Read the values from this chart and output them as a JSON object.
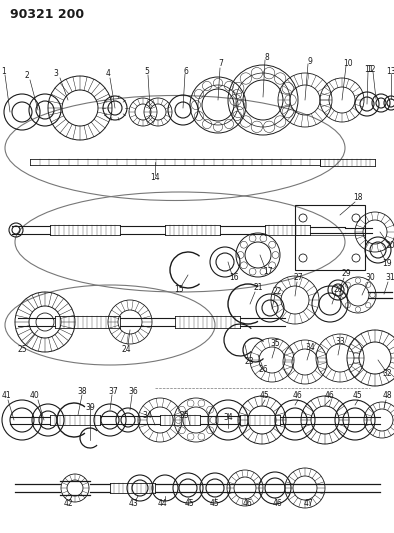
{
  "title": "90321 200",
  "bg_color": "#ffffff",
  "title_fontsize": 9,
  "fig_width": 3.94,
  "fig_height": 5.33,
  "dpi": 100,
  "line_color": "#1a1a1a",
  "gray": "#777777"
}
